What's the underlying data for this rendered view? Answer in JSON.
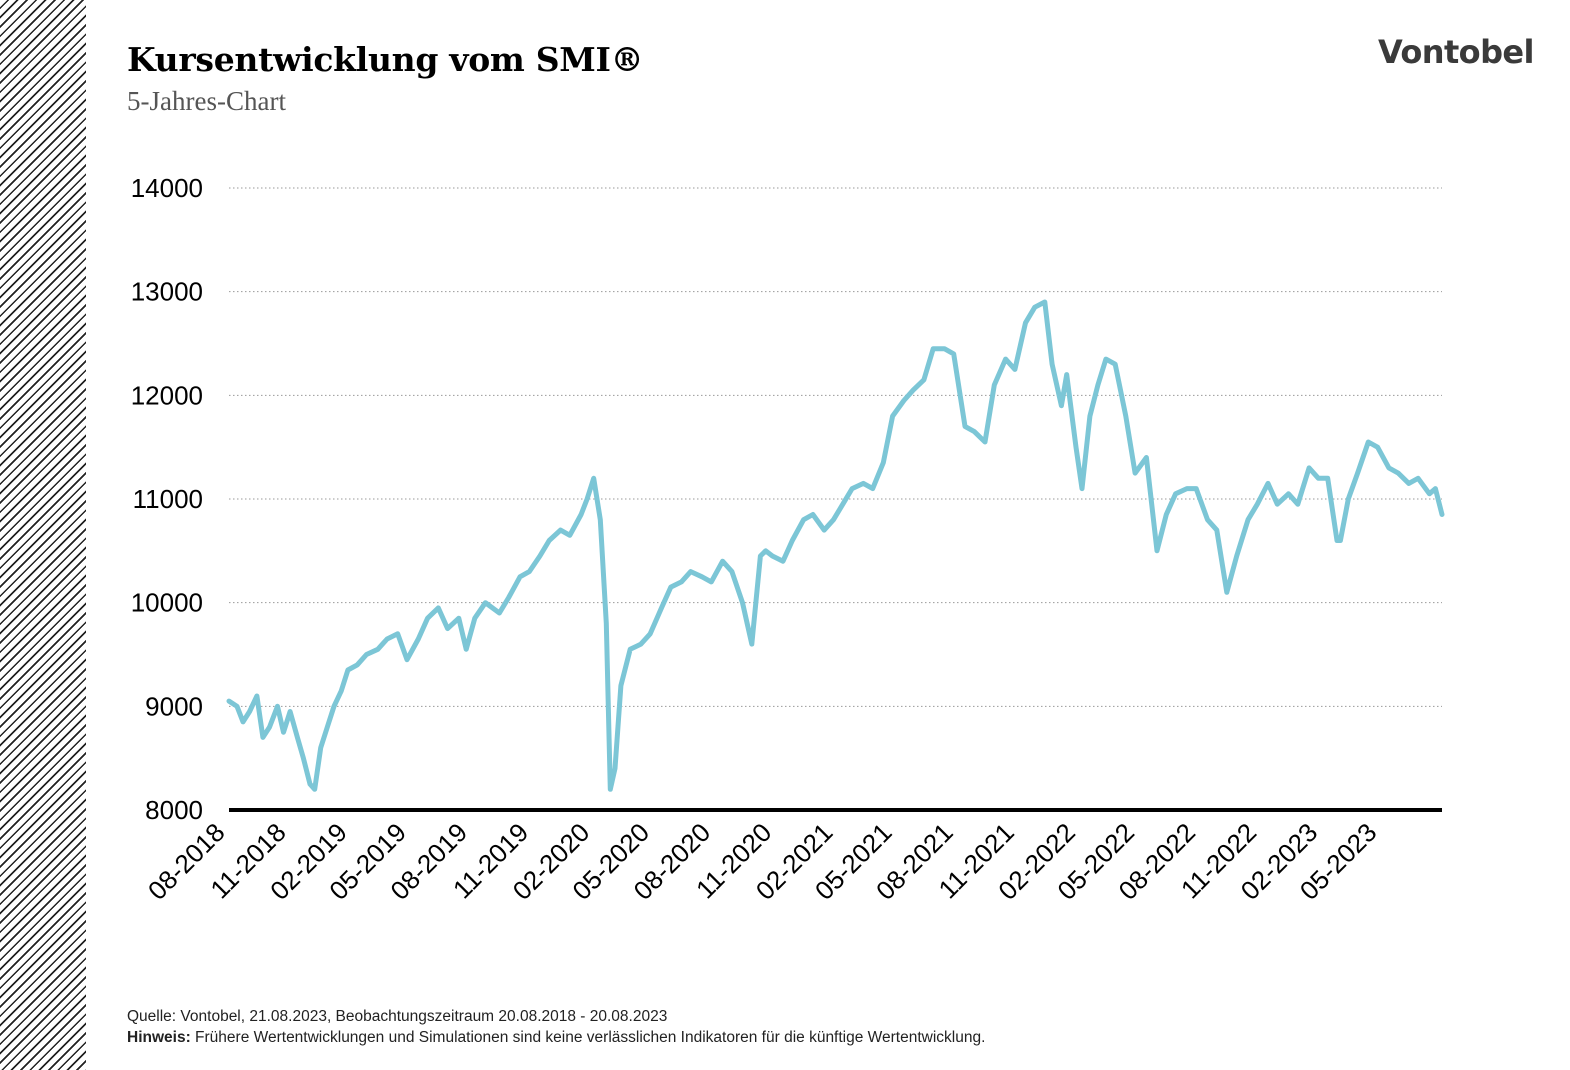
{
  "header": {
    "title": "Kursentwicklung vom SMI®",
    "subtitle": "5-Jahres-Chart",
    "logo_text": "Vontobel"
  },
  "footer": {
    "source": "Quelle: Vontobel, 21.08.2023, Beobachtungszeitraum 20.08.2018 - 20.08.2023",
    "note_label": "Hinweis:",
    "note_text": "Frühere Wertentwicklungen und Simulationen sind keine verlässlichen Indikatoren für die künftige Wertentwicklung."
  },
  "chart_data": {
    "type": "line",
    "title": "Kursentwicklung vom SMI®",
    "subtitle": "5-Jahres-Chart",
    "xlabel": "",
    "ylabel": "",
    "ylim": [
      8000,
      14000
    ],
    "xlim": [
      "2018-08-20",
      "2023-08-20"
    ],
    "yticks": [
      8000,
      9000,
      10000,
      11000,
      12000,
      13000,
      14000
    ],
    "ytick_labels": [
      "8000",
      "9000",
      "10000",
      "11000",
      "12000",
      "13000",
      "14000"
    ],
    "xtick_labels": [
      "08-2018",
      "11-2018",
      "02-2019",
      "05-2019",
      "08-2019",
      "11-2019",
      "02-2020",
      "05-2020",
      "08-2020",
      "11-2020",
      "02-2021",
      "05-2021",
      "08-2021",
      "11-2021",
      "02-2022",
      "05-2022",
      "08-2022",
      "11-2022",
      "02-2023",
      "05-2023"
    ],
    "grid": "horizontal dotted",
    "legend": "none",
    "line_color": "#7cc6d6",
    "series": [
      {
        "x": [
          "2018-08-20",
          "2018-09-01",
          "2018-09-10",
          "2018-09-20",
          "2018-10-01",
          "2018-10-10",
          "2018-10-20",
          "2018-11-01",
          "2018-11-10",
          "2018-11-20",
          "2018-12-01",
          "2018-12-10",
          "2018-12-20",
          "2018-12-27",
          "2019-01-05",
          "2019-01-15",
          "2019-01-25",
          "2019-02-05",
          "2019-02-15",
          "2019-03-01",
          "2019-03-15",
          "2019-04-01",
          "2019-04-15",
          "2019-05-01",
          "2019-05-15",
          "2019-06-01",
          "2019-06-15",
          "2019-07-01",
          "2019-07-15",
          "2019-08-01",
          "2019-08-12",
          "2019-08-25",
          "2019-09-10",
          "2019-10-01",
          "2019-10-15",
          "2019-11-01",
          "2019-11-15",
          "2019-12-01",
          "2019-12-15",
          "2020-01-01",
          "2020-01-15",
          "2020-02-01",
          "2020-02-10",
          "2020-02-20",
          "2020-03-01",
          "2020-03-10",
          "2020-03-16",
          "2020-03-23",
          "2020-04-01",
          "2020-04-15",
          "2020-05-01",
          "2020-05-15",
          "2020-06-01",
          "2020-06-15",
          "2020-07-01",
          "2020-07-15",
          "2020-08-01",
          "2020-08-15",
          "2020-09-01",
          "2020-09-15",
          "2020-10-01",
          "2020-10-15",
          "2020-10-28",
          "2020-11-05",
          "2020-11-15",
          "2020-12-01",
          "2020-12-15",
          "2021-01-01",
          "2021-01-15",
          "2021-02-01",
          "2021-02-15",
          "2021-03-01",
          "2021-03-15",
          "2021-04-01",
          "2021-04-15",
          "2021-05-01",
          "2021-05-15",
          "2021-06-01",
          "2021-06-15",
          "2021-07-01",
          "2021-07-15",
          "2021-08-01",
          "2021-08-15",
          "2021-09-01",
          "2021-09-15",
          "2021-10-01",
          "2021-10-15",
          "2021-11-01",
          "2021-11-15",
          "2021-12-01",
          "2021-12-15",
          "2021-12-30",
          "2022-01-10",
          "2022-01-24",
          "2022-02-01",
          "2022-02-15",
          "2022-02-24",
          "2022-03-08",
          "2022-03-20",
          "2022-04-01",
          "2022-04-15",
          "2022-05-01",
          "2022-05-15",
          "2022-06-01",
          "2022-06-17",
          "2022-07-01",
          "2022-07-15",
          "2022-08-01",
          "2022-08-15",
          "2022-09-01",
          "2022-09-15",
          "2022-09-30",
          "2022-10-15",
          "2022-11-01",
          "2022-11-15",
          "2022-12-01",
          "2022-12-15",
          "2023-01-01",
          "2023-01-15",
          "2023-02-01",
          "2023-02-15",
          "2023-03-01",
          "2023-03-15",
          "2023-03-20",
          "2023-04-01",
          "2023-04-15",
          "2023-05-01",
          "2023-05-15",
          "2023-06-01",
          "2023-06-15",
          "2023-07-01",
          "2023-07-15",
          "2023-08-01",
          "2023-08-10",
          "2023-08-20"
        ],
        "values": [
          9050,
          9000,
          8850,
          8950,
          9100,
          8700,
          8800,
          9000,
          8750,
          8950,
          8700,
          8500,
          8250,
          8200,
          8600,
          8800,
          9000,
          9150,
          9350,
          9400,
          9500,
          9550,
          9650,
          9700,
          9450,
          9650,
          9850,
          9950,
          9750,
          9850,
          9550,
          9850,
          10000,
          9900,
          10050,
          10250,
          10300,
          10450,
          10600,
          10700,
          10650,
          10850,
          11000,
          11200,
          10800,
          9800,
          8200,
          8400,
          9200,
          9550,
          9600,
          9700,
          9950,
          10150,
          10200,
          10300,
          10250,
          10200,
          10400,
          10300,
          10000,
          9600,
          10450,
          10500,
          10450,
          10400,
          10600,
          10800,
          10850,
          10700,
          10800,
          10950,
          11100,
          11150,
          11100,
          11350,
          11800,
          11950,
          12050,
          12150,
          12450,
          12450,
          12400,
          11700,
          11650,
          11550,
          12100,
          12350,
          12250,
          12700,
          12850,
          12900,
          12300,
          11900,
          12200,
          11500,
          11100,
          11800,
          12100,
          12350,
          12300,
          11800,
          11250,
          11400,
          10500,
          10850,
          11050,
          11100,
          11100,
          10800,
          10700,
          10100,
          10450,
          10800,
          10950,
          11150,
          10950,
          11050,
          10950,
          11300,
          11200,
          11200,
          10600,
          10600,
          11000,
          11250,
          11550,
          11500,
          11300,
          11250,
          11150,
          11200,
          11050,
          11100,
          10850
        ]
      }
    ]
  }
}
